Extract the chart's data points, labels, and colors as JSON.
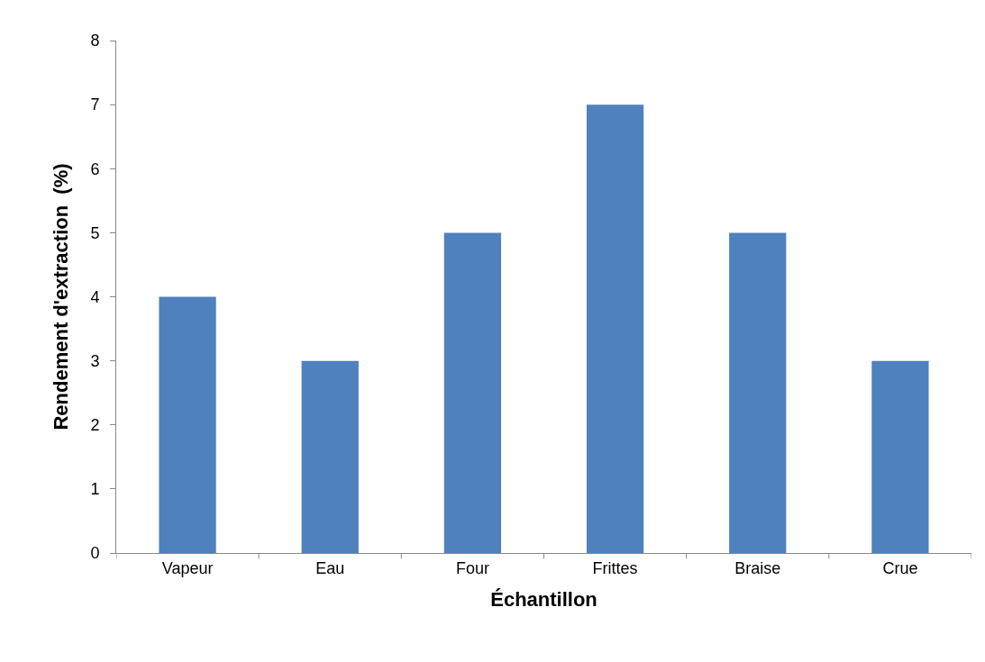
{
  "chart_data": {
    "type": "bar",
    "xlabel": "Échantillon",
    "ylabel": "Rendement d'extraction  (%)",
    "categories": [
      "Vapeur",
      "Eau",
      "Four",
      "Frittes",
      "Braise",
      "Crue"
    ],
    "values": [
      4,
      3,
      5,
      7,
      5,
      3
    ],
    "color": "#4f81bd",
    "ylim": [
      0,
      8
    ],
    "yticks": [
      0,
      1,
      2,
      3,
      4,
      5,
      6,
      7,
      8
    ],
    "grid": false,
    "legend": false
  }
}
